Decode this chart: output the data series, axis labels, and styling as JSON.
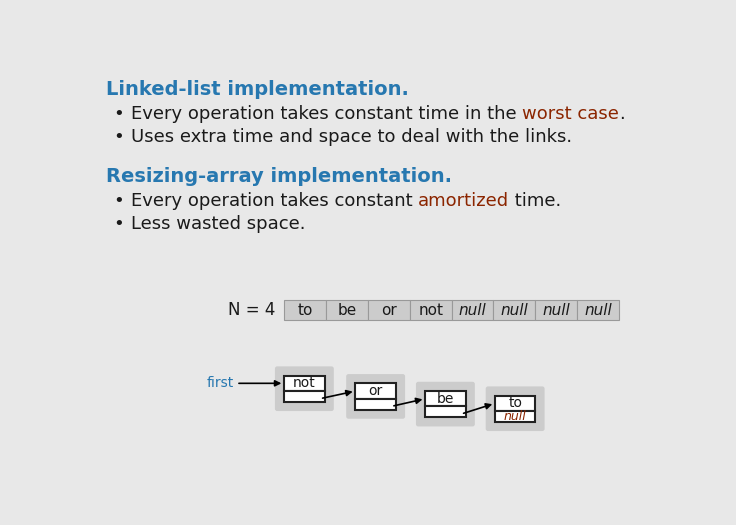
{
  "bg_color": "#e8e8e8",
  "title1": "Linked-list implementation.",
  "title1_color": "#2778b0",
  "bullet1_1_plain": "Every operation takes constant time in the ",
  "bullet1_1_highlight": "worst case",
  "bullet1_1_highlight_color": "#8b2500",
  "bullet1_1_end": ".",
  "bullet1_2": "Uses extra time and space to deal with the links.",
  "title2": "Resizing-array implementation.",
  "title2_color": "#2778b0",
  "bullet2_1_plain": "Every operation takes constant ",
  "bullet2_1_highlight": "amortized",
  "bullet2_1_highlight_color": "#8b2500",
  "bullet2_1_end": " time.",
  "bullet2_2": "Less wasted space.",
  "text_color": "#1a1a1a",
  "array_label": "N = 4",
  "array_items": [
    "to",
    "be",
    "or",
    "not",
    "null",
    "null",
    "null",
    "null"
  ],
  "array_item_styles": [
    "normal",
    "normal",
    "normal",
    "normal",
    "italic",
    "italic",
    "italic",
    "italic"
  ],
  "array_cell_color": "#cccccc",
  "array_border_color": "#999999",
  "ll_nodes": [
    "not",
    "or",
    "be",
    "to"
  ],
  "ll_last_null": "null",
  "node_bg": "#cccccc",
  "node_border": "#222222",
  "node_inner_bg": "#ffffff",
  "first_label": "first",
  "first_label_color": "#2778b0",
  "font_family": "DejaVu Sans"
}
